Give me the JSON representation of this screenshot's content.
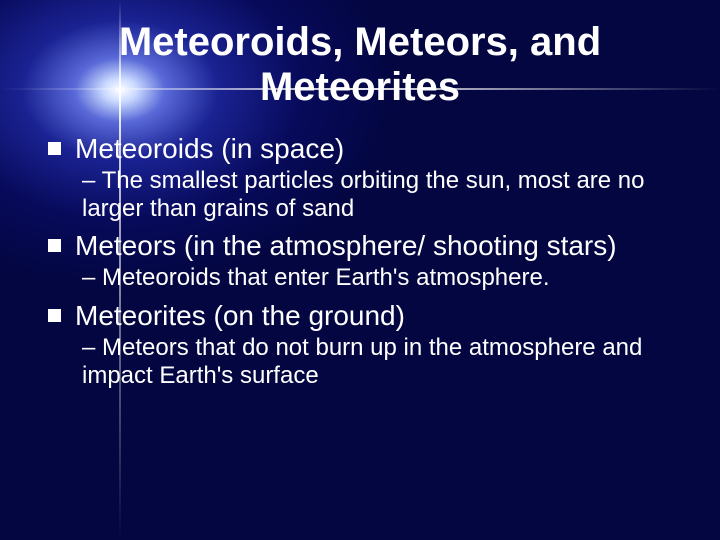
{
  "title": "Meteoroids, Meteors, and Meteorites",
  "title_fontsize": 40,
  "heading_fontsize": 28,
  "sub_fontsize": 24,
  "text_color": "#ffffff",
  "bullet_color": "#ffffff",
  "items": [
    {
      "heading": "Meteoroids (in space)",
      "sub": "– The smallest particles orbiting the sun, most are no larger than grains of sand"
    },
    {
      "heading": "Meteors (in the atmosphere/ shooting stars)",
      "sub": "– Meteoroids that enter Earth's atmosphere."
    },
    {
      "heading": "Meteorites (on the ground)",
      "sub": "– Meteors that do not burn up in the atmosphere and impact Earth's surface"
    }
  ]
}
